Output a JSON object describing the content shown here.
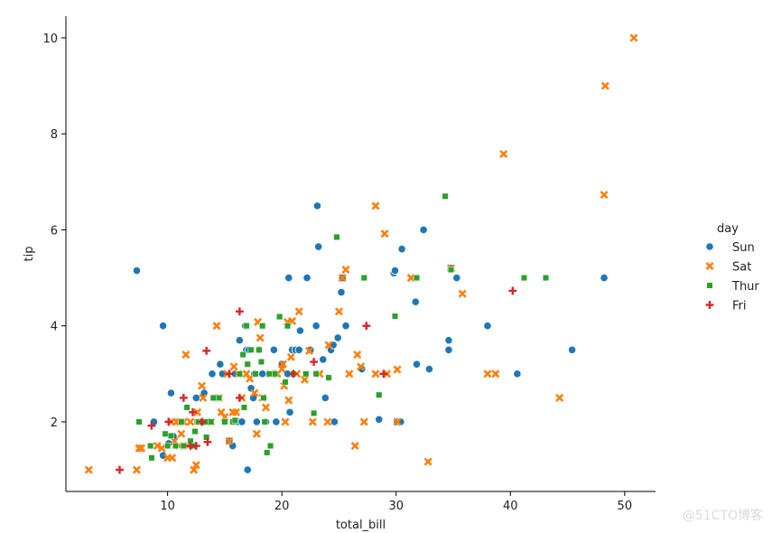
{
  "chart_data": {
    "type": "scatter",
    "xlabel": "total_bill",
    "ylabel": "tip",
    "xlim": [
      1.1,
      52.7
    ],
    "ylim": [
      0.55,
      10.45
    ],
    "xticks": [
      10,
      20,
      30,
      40,
      50
    ],
    "yticks": [
      2,
      4,
      6,
      8,
      10
    ],
    "grid": false,
    "legend_title": "day",
    "legend_position": "right",
    "series": [
      {
        "name": "Sun",
        "color": "#1f77b4",
        "marker": "circle",
        "points": [
          [
            7.3,
            5.15
          ],
          [
            9.6,
            4.0
          ],
          [
            10.3,
            2.6
          ],
          [
            8.8,
            2.0
          ],
          [
            9.6,
            1.3
          ],
          [
            10.1,
            1.55
          ],
          [
            10.5,
            1.7
          ],
          [
            11.0,
            2.0
          ],
          [
            12.5,
            2.5
          ],
          [
            13.2,
            2.6
          ],
          [
            13.7,
            2.0
          ],
          [
            13.9,
            3.0
          ],
          [
            14.1,
            2.5
          ],
          [
            14.6,
            3.2
          ],
          [
            14.8,
            3.0
          ],
          [
            15.0,
            2.0
          ],
          [
            15.4,
            1.6
          ],
          [
            15.7,
            1.5
          ],
          [
            15.9,
            3.0
          ],
          [
            16.2,
            2.0
          ],
          [
            16.3,
            3.7
          ],
          [
            16.5,
            2.0
          ],
          [
            16.8,
            4.0
          ],
          [
            16.9,
            3.5
          ],
          [
            17.1,
            3.5
          ],
          [
            17.3,
            2.7
          ],
          [
            17.5,
            2.5
          ],
          [
            17.6,
            3.0
          ],
          [
            17.8,
            2.0
          ],
          [
            18.0,
            3.5
          ],
          [
            18.3,
            3.0
          ],
          [
            18.6,
            2.0
          ],
          [
            19.3,
            3.5
          ],
          [
            19.5,
            2.0
          ],
          [
            20.0,
            3.2
          ],
          [
            20.5,
            3.0
          ],
          [
            20.6,
            5.0
          ],
          [
            20.7,
            2.2
          ],
          [
            20.9,
            3.5
          ],
          [
            21.2,
            3.5
          ],
          [
            21.5,
            3.5
          ],
          [
            21.6,
            3.9
          ],
          [
            22.2,
            5.0
          ],
          [
            22.5,
            3.5
          ],
          [
            23.0,
            4.0
          ],
          [
            23.1,
            6.5
          ],
          [
            23.2,
            5.65
          ],
          [
            23.6,
            3.3
          ],
          [
            23.8,
            2.5
          ],
          [
            24.3,
            3.5
          ],
          [
            24.5,
            3.6
          ],
          [
            24.6,
            2.0
          ],
          [
            24.9,
            3.75
          ],
          [
            25.2,
            4.7
          ],
          [
            25.3,
            5.0
          ],
          [
            25.6,
            4.0
          ],
          [
            27.0,
            3.1
          ],
          [
            28.5,
            2.05
          ],
          [
            29.8,
            5.1
          ],
          [
            30.1,
            2.0
          ],
          [
            30.4,
            2.0
          ],
          [
            30.5,
            5.6
          ],
          [
            31.7,
            4.5
          ],
          [
            31.8,
            3.2
          ],
          [
            32.4,
            6.0
          ],
          [
            32.9,
            3.1
          ],
          [
            34.6,
            3.5
          ],
          [
            34.6,
            3.7
          ],
          [
            34.8,
            5.2
          ],
          [
            35.3,
            5.0
          ],
          [
            38.0,
            4.0
          ],
          [
            40.6,
            3.0
          ],
          [
            45.4,
            3.5
          ],
          [
            48.2,
            5.0
          ],
          [
            17.0,
            1.0
          ],
          [
            29.9,
            5.15
          ]
        ]
      },
      {
        "name": "Sat",
        "color": "#ff7f0e",
        "marker": "x",
        "points": [
          [
            3.1,
            1.0
          ],
          [
            7.3,
            1.0
          ],
          [
            7.5,
            1.45
          ],
          [
            7.7,
            1.45
          ],
          [
            9.1,
            1.5
          ],
          [
            9.5,
            1.45
          ],
          [
            10.0,
            1.25
          ],
          [
            10.3,
            2.0
          ],
          [
            10.4,
            1.25
          ],
          [
            10.6,
            1.6
          ],
          [
            10.8,
            2.0
          ],
          [
            11.0,
            1.5
          ],
          [
            11.1,
            2.0
          ],
          [
            11.2,
            1.75
          ],
          [
            11.4,
            2.0
          ],
          [
            11.6,
            3.4
          ],
          [
            11.8,
            1.5
          ],
          [
            12.0,
            2.0
          ],
          [
            12.3,
            1.0
          ],
          [
            12.5,
            1.1
          ],
          [
            12.6,
            2.2
          ],
          [
            12.9,
            2.0
          ],
          [
            13.0,
            2.75
          ],
          [
            13.1,
            2.5
          ],
          [
            13.4,
            2.0
          ],
          [
            13.8,
            2.0
          ],
          [
            14.3,
            4.0
          ],
          [
            14.5,
            2.5
          ],
          [
            14.7,
            2.2
          ],
          [
            15.0,
            2.1
          ],
          [
            15.2,
            3.0
          ],
          [
            15.4,
            1.6
          ],
          [
            15.7,
            2.2
          ],
          [
            15.8,
            3.15
          ],
          [
            16.0,
            2.2
          ],
          [
            16.2,
            3.0
          ],
          [
            16.5,
            2.5
          ],
          [
            16.9,
            3.0
          ],
          [
            17.2,
            2.9
          ],
          [
            17.6,
            2.6
          ],
          [
            17.8,
            1.75
          ],
          [
            17.9,
            4.08
          ],
          [
            18.1,
            3.75
          ],
          [
            18.3,
            2.5
          ],
          [
            18.6,
            2.3
          ],
          [
            19.0,
            3.0
          ],
          [
            19.6,
            3.0
          ],
          [
            20.0,
            3.1
          ],
          [
            20.1,
            3.2
          ],
          [
            20.2,
            2.75
          ],
          [
            20.3,
            2.0
          ],
          [
            20.5,
            4.08
          ],
          [
            20.6,
            2.45
          ],
          [
            20.8,
            3.35
          ],
          [
            20.9,
            4.1
          ],
          [
            21.3,
            3.0
          ],
          [
            21.5,
            4.3
          ],
          [
            22.0,
            2.88
          ],
          [
            22.4,
            3.48
          ],
          [
            22.7,
            2.0
          ],
          [
            23.3,
            3.0
          ],
          [
            24.0,
            2.0
          ],
          [
            24.1,
            3.6
          ],
          [
            25.0,
            4.3
          ],
          [
            25.3,
            5.0
          ],
          [
            25.6,
            5.17
          ],
          [
            25.9,
            3.0
          ],
          [
            26.4,
            1.5
          ],
          [
            26.6,
            3.4
          ],
          [
            26.9,
            3.15
          ],
          [
            27.2,
            2.0
          ],
          [
            28.2,
            3.0
          ],
          [
            28.2,
            6.5
          ],
          [
            29.0,
            5.92
          ],
          [
            30.1,
            2.0
          ],
          [
            30.1,
            3.09
          ],
          [
            31.3,
            5.0
          ],
          [
            32.8,
            1.17
          ],
          [
            35.8,
            4.67
          ],
          [
            38.0,
            3.0
          ],
          [
            38.7,
            3.0
          ],
          [
            39.4,
            7.58
          ],
          [
            44.3,
            2.5
          ],
          [
            48.2,
            6.73
          ],
          [
            48.3,
            9.0
          ],
          [
            50.8,
            10.0
          ],
          [
            29.2,
            3.0
          ],
          [
            34.8,
            5.2
          ]
        ]
      },
      {
        "name": "Thur",
        "color": "#2ca02c",
        "marker": "square",
        "points": [
          [
            7.5,
            2.0
          ],
          [
            8.5,
            1.5
          ],
          [
            8.6,
            1.25
          ],
          [
            9.8,
            1.75
          ],
          [
            10.0,
            1.5
          ],
          [
            10.3,
            1.71
          ],
          [
            10.7,
            1.5
          ],
          [
            11.2,
            2.0
          ],
          [
            11.4,
            1.5
          ],
          [
            11.7,
            2.3
          ],
          [
            12.0,
            1.6
          ],
          [
            12.2,
            1.5
          ],
          [
            12.4,
            1.8
          ],
          [
            12.6,
            2.0
          ],
          [
            12.7,
            2.0
          ],
          [
            13.0,
            2.0
          ],
          [
            13.3,
            2.0
          ],
          [
            13.4,
            1.68
          ],
          [
            13.8,
            2.0
          ],
          [
            14.0,
            2.5
          ],
          [
            14.5,
            2.5
          ],
          [
            15.0,
            2.0
          ],
          [
            15.7,
            2.0
          ],
          [
            15.9,
            2.03
          ],
          [
            16.3,
            3.0
          ],
          [
            16.6,
            3.4
          ],
          [
            16.7,
            2.3
          ],
          [
            16.9,
            4.0
          ],
          [
            17.0,
            3.2
          ],
          [
            17.3,
            3.5
          ],
          [
            17.7,
            3.0
          ],
          [
            18.0,
            3.5
          ],
          [
            18.2,
            3.25
          ],
          [
            18.3,
            4.0
          ],
          [
            18.4,
            2.5
          ],
          [
            18.5,
            2.0
          ],
          [
            18.7,
            1.36
          ],
          [
            18.9,
            3.0
          ],
          [
            19.0,
            1.5
          ],
          [
            19.4,
            3.0
          ],
          [
            19.8,
            4.19
          ],
          [
            20.3,
            2.83
          ],
          [
            20.5,
            4.0
          ],
          [
            21.0,
            3.0
          ],
          [
            22.1,
            3.0
          ],
          [
            22.8,
            2.18
          ],
          [
            23.0,
            3.0
          ],
          [
            24.1,
            2.92
          ],
          [
            24.8,
            5.85
          ],
          [
            27.2,
            5.0
          ],
          [
            28.5,
            2.56
          ],
          [
            29.9,
            4.2
          ],
          [
            31.8,
            5.0
          ],
          [
            34.3,
            6.7
          ],
          [
            34.8,
            5.17
          ],
          [
            41.2,
            5.0
          ],
          [
            43.1,
            5.0
          ]
        ]
      },
      {
        "name": "Fri",
        "color": "#d62728",
        "marker": "plus",
        "points": [
          [
            5.8,
            1.0
          ],
          [
            8.6,
            1.92
          ],
          [
            10.1,
            2.0
          ],
          [
            11.4,
            2.5
          ],
          [
            12.0,
            1.5
          ],
          [
            12.2,
            2.2
          ],
          [
            12.5,
            1.5
          ],
          [
            13.4,
            3.48
          ],
          [
            13.5,
            1.58
          ],
          [
            16.3,
            2.5
          ],
          [
            16.3,
            4.3
          ],
          [
            21.0,
            3.0
          ],
          [
            22.8,
            3.25
          ],
          [
            27.4,
            4.0
          ],
          [
            28.9,
            3.0
          ],
          [
            40.2,
            4.73
          ],
          [
            15.4,
            3.0
          ],
          [
            13.0,
            2.0
          ]
        ]
      }
    ]
  },
  "watermark": "@51CTO博客"
}
